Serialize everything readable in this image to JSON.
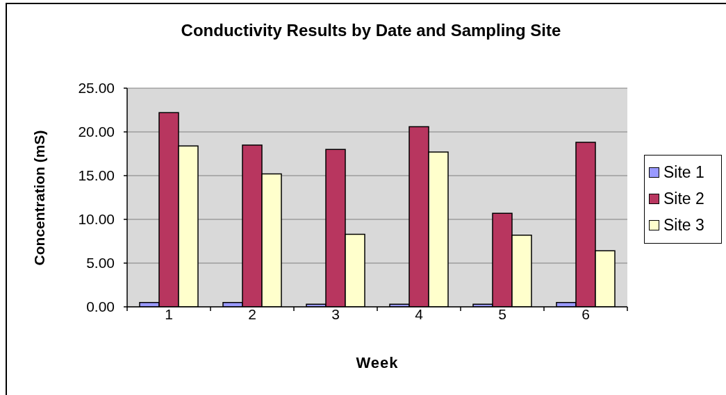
{
  "chart_data": {
    "type": "bar",
    "title": "Conductivity Results by Date and Sampling Site",
    "xlabel": "Week",
    "ylabel": "Concentration (mS)",
    "categories": [
      "1",
      "2",
      "3",
      "4",
      "5",
      "6"
    ],
    "series": [
      {
        "name": "Site 1",
        "color": "#9999ff",
        "values": [
          0.5,
          0.5,
          0.3,
          0.3,
          0.3,
          0.5
        ]
      },
      {
        "name": "Site 2",
        "color": "#b8365f",
        "values": [
          22.2,
          18.5,
          18.0,
          20.6,
          10.7,
          18.8
        ]
      },
      {
        "name": "Site 3",
        "color": "#ffffcc",
        "values": [
          18.4,
          15.2,
          8.3,
          17.7,
          8.2,
          6.4
        ]
      }
    ],
    "ylim": [
      0,
      25
    ],
    "yticks": [
      {
        "value": 0,
        "label": "0.00"
      },
      {
        "value": 5,
        "label": "5.00"
      },
      {
        "value": 10,
        "label": "10.00"
      },
      {
        "value": 15,
        "label": "15.00"
      },
      {
        "value": 20,
        "label": "20.00"
      },
      {
        "value": 25,
        "label": "25.00"
      }
    ],
    "grid": "y",
    "legend": "right"
  }
}
